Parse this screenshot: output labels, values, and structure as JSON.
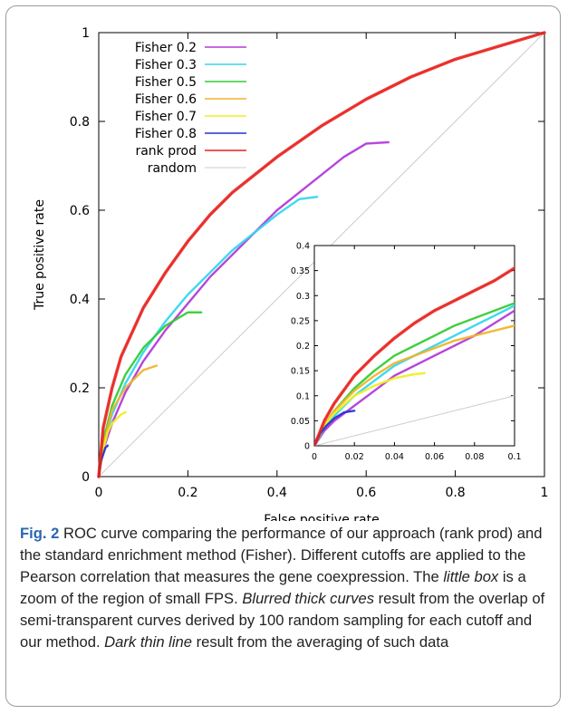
{
  "chart_data": [
    {
      "type": "line",
      "title": "",
      "xlabel": "False positive rate",
      "ylabel": "True positive rate",
      "xlim": [
        0,
        1
      ],
      "ylim": [
        0,
        1
      ],
      "xticks": [
        "0",
        "0.2",
        "0.4",
        "0.6",
        "0.8",
        "1"
      ],
      "yticks": [
        "0",
        "0.2",
        "0.4",
        "0.6",
        "0.8",
        "1"
      ],
      "legend": "top-left",
      "grid": false,
      "series": [
        {
          "name": "Fisher 0.2",
          "color": "#b13ad9",
          "x": [
            0,
            0.01,
            0.03,
            0.06,
            0.1,
            0.15,
            0.2,
            0.25,
            0.3,
            0.35,
            0.4,
            0.45,
            0.5,
            0.55,
            0.6,
            0.65
          ],
          "y": [
            0,
            0.06,
            0.12,
            0.19,
            0.26,
            0.33,
            0.39,
            0.45,
            0.5,
            0.55,
            0.6,
            0.64,
            0.68,
            0.72,
            0.75,
            0.753
          ]
        },
        {
          "name": "Fisher 0.3",
          "color": "#33d6f0",
          "x": [
            0,
            0.01,
            0.03,
            0.06,
            0.1,
            0.15,
            0.2,
            0.25,
            0.3,
            0.35,
            0.4,
            0.45,
            0.49
          ],
          "y": [
            0,
            0.07,
            0.14,
            0.21,
            0.28,
            0.35,
            0.41,
            0.46,
            0.51,
            0.55,
            0.59,
            0.625,
            0.63
          ]
        },
        {
          "name": "Fisher 0.5",
          "color": "#33cc33",
          "x": [
            0,
            0.01,
            0.03,
            0.06,
            0.1,
            0.15,
            0.2,
            0.23
          ],
          "y": [
            0,
            0.08,
            0.16,
            0.23,
            0.29,
            0.34,
            0.37,
            0.37
          ]
        },
        {
          "name": "Fisher 0.6",
          "color": "#f0b429",
          "x": [
            0,
            0.01,
            0.03,
            0.06,
            0.1,
            0.13
          ],
          "y": [
            0,
            0.07,
            0.15,
            0.2,
            0.24,
            0.25
          ]
        },
        {
          "name": "Fisher 0.7",
          "color": "#eeee22",
          "x": [
            0,
            0.01,
            0.02,
            0.03,
            0.05,
            0.06
          ],
          "y": [
            0,
            0.06,
            0.1,
            0.12,
            0.14,
            0.145
          ]
        },
        {
          "name": "Fisher 0.8",
          "color": "#2233cc",
          "x": [
            0,
            0.005,
            0.01,
            0.015,
            0.02
          ],
          "y": [
            0,
            0.035,
            0.05,
            0.065,
            0.07
          ]
        },
        {
          "name": "rank prod",
          "color": "#e8201c",
          "x": [
            0,
            0.01,
            0.03,
            0.05,
            0.1,
            0.15,
            0.2,
            0.25,
            0.3,
            0.4,
            0.5,
            0.6,
            0.7,
            0.8,
            0.9,
            1.0
          ],
          "y": [
            0,
            0.11,
            0.2,
            0.27,
            0.38,
            0.46,
            0.53,
            0.59,
            0.64,
            0.72,
            0.79,
            0.85,
            0.9,
            0.94,
            0.97,
            1.0
          ]
        },
        {
          "name": "random",
          "color": "#cccccc",
          "x": [
            0,
            1
          ],
          "y": [
            0,
            1
          ]
        }
      ]
    },
    {
      "type": "line",
      "title": "",
      "xlim": [
        0,
        0.1
      ],
      "ylim": [
        0,
        0.4
      ],
      "xticks": [
        "0",
        "0.02",
        "0.04",
        "0.06",
        "0.08",
        "0.1"
      ],
      "yticks": [
        "0",
        "0.05",
        "0.1",
        "0.15",
        "0.2",
        "0.25",
        "0.3",
        "0.35",
        "0.4"
      ],
      "grid": false,
      "series": [
        {
          "color": "#b13ad9",
          "x": [
            0,
            0.005,
            0.01,
            0.02,
            0.03,
            0.04,
            0.05,
            0.06,
            0.07,
            0.08,
            0.09,
            0.1
          ],
          "y": [
            0,
            0.03,
            0.05,
            0.08,
            0.11,
            0.14,
            0.16,
            0.18,
            0.2,
            0.22,
            0.245,
            0.27
          ]
        },
        {
          "color": "#33d6f0",
          "x": [
            0,
            0.005,
            0.01,
            0.02,
            0.03,
            0.04,
            0.05,
            0.06,
            0.07,
            0.08,
            0.09,
            0.1
          ],
          "y": [
            0,
            0.035,
            0.06,
            0.1,
            0.13,
            0.16,
            0.18,
            0.2,
            0.22,
            0.24,
            0.26,
            0.28
          ]
        },
        {
          "color": "#33cc33",
          "x": [
            0,
            0.005,
            0.01,
            0.02,
            0.03,
            0.04,
            0.05,
            0.06,
            0.07,
            0.08,
            0.09,
            0.1
          ],
          "y": [
            0,
            0.04,
            0.07,
            0.115,
            0.15,
            0.18,
            0.2,
            0.22,
            0.24,
            0.255,
            0.27,
            0.285
          ]
        },
        {
          "color": "#f0b429",
          "x": [
            0,
            0.005,
            0.01,
            0.02,
            0.03,
            0.04,
            0.05,
            0.06,
            0.07,
            0.08,
            0.09,
            0.1
          ],
          "y": [
            0,
            0.04,
            0.07,
            0.11,
            0.14,
            0.165,
            0.18,
            0.195,
            0.21,
            0.22,
            0.23,
            0.24
          ]
        },
        {
          "color": "#eeee22",
          "x": [
            0,
            0.005,
            0.01,
            0.02,
            0.03,
            0.04,
            0.05,
            0.055
          ],
          "y": [
            0,
            0.04,
            0.065,
            0.1,
            0.12,
            0.135,
            0.143,
            0.145
          ]
        },
        {
          "color": "#2233cc",
          "x": [
            0,
            0.003,
            0.006,
            0.01,
            0.015,
            0.02
          ],
          "y": [
            0,
            0.025,
            0.04,
            0.055,
            0.067,
            0.07
          ]
        },
        {
          "color": "#e8201c",
          "x": [
            0,
            0.005,
            0.01,
            0.02,
            0.03,
            0.04,
            0.05,
            0.06,
            0.07,
            0.08,
            0.09,
            0.1
          ],
          "y": [
            0,
            0.05,
            0.085,
            0.14,
            0.18,
            0.215,
            0.245,
            0.27,
            0.29,
            0.31,
            0.33,
            0.355
          ]
        },
        {
          "color": "#cccccc",
          "x": [
            0,
            0.1
          ],
          "y": [
            0,
            0.1
          ]
        }
      ]
    }
  ],
  "caption": {
    "label": "Fig. 2",
    "part1": " ROC curve comparing the performance of our approach (rank prod) and the standard enrichment method (Fisher). Different cutoffs are applied to the Pearson correlation that measures the gene coexpression. The ",
    "italic1": "little box",
    "part2": " is a zoom of the region of small FPS. ",
    "italic2": "Blurred thick curves",
    "part3": " result from the overlap of semi-transparent curves derived by 100 random sampling for each cutoff and our method. ",
    "italic3": "Dark thin line",
    "part4": " result from the averaging of such data"
  }
}
